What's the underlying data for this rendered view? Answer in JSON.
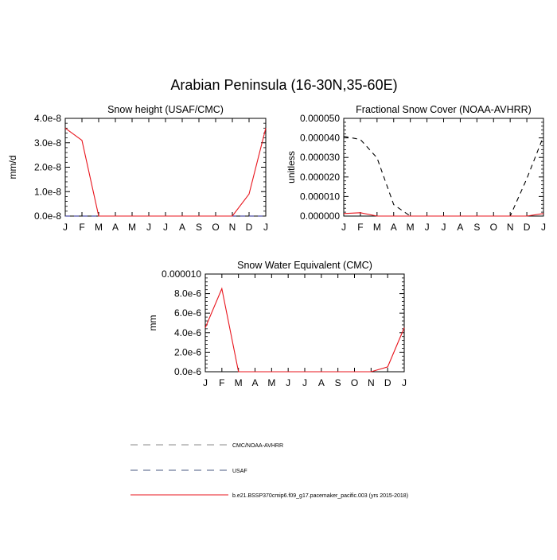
{
  "figure_title": "Arabian Peninsula (16-30N,35-60E)",
  "months": [
    "J",
    "F",
    "M",
    "A",
    "M",
    "J",
    "J",
    "A",
    "S",
    "O",
    "N",
    "D",
    "J"
  ],
  "colors": {
    "model": "#e8141c",
    "cmc_noaa": "#000000",
    "usaf": "#1f1f8f",
    "legend_cmc": "#8a8a8a",
    "legend_usaf": "#4a5a80"
  },
  "chart_data": [
    {
      "type": "line",
      "title": "Snow height (USAF/CMC)",
      "xlabel": "",
      "ylabel": "mm/d",
      "ylim": [
        0,
        4e-08
      ],
      "yticks": [
        0,
        1e-08,
        2e-08,
        3e-08,
        4e-08
      ],
      "ytick_labels": [
        "0.0e-8",
        "1.0e-8",
        "2.0e-8",
        "3.0e-8",
        "4.0e-8"
      ],
      "x": [
        "J",
        "F",
        "M",
        "A",
        "M",
        "J",
        "J",
        "A",
        "S",
        "O",
        "N",
        "D",
        "J"
      ],
      "series": [
        {
          "name": "CMC/NOAA-AVHRR",
          "style": "dashed-black",
          "values": [
            0,
            0,
            0,
            0,
            0,
            0,
            0,
            0,
            0,
            0,
            0,
            0,
            0
          ]
        },
        {
          "name": "USAF",
          "style": "dashed-blue",
          "values": [
            0,
            0,
            0,
            0,
            0,
            0,
            0,
            0,
            0,
            0,
            0,
            0,
            0
          ]
        },
        {
          "name": "b.e21.BSSP370cmip6.f09_g17.pacemaker_pacific.003 (yrs 2015-2018)",
          "style": "solid-red",
          "values": [
            3.6e-08,
            3.1e-08,
            0,
            0,
            0,
            0,
            0,
            0,
            0,
            0,
            0,
            9e-09,
            3.6e-08
          ]
        }
      ]
    },
    {
      "type": "line",
      "title": "Fractional Snow Cover (NOAA-AVHRR)",
      "xlabel": "",
      "ylabel": "unitless",
      "ylim": [
        0,
        5e-05
      ],
      "yticks": [
        0,
        1e-05,
        2e-05,
        3e-05,
        4e-05,
        5e-05
      ],
      "ytick_labels": [
        "0.000000",
        "0.000010",
        "0.000020",
        "0.000030",
        "0.000040",
        "0.000050"
      ],
      "x": [
        "J",
        "F",
        "M",
        "A",
        "M",
        "J",
        "J",
        "A",
        "S",
        "O",
        "N",
        "D",
        "J"
      ],
      "series": [
        {
          "name": "CMC/NOAA-AVHRR",
          "style": "dashed-black",
          "values": [
            4.08e-05,
            3.92e-05,
            2.98e-05,
            5.8e-06,
            0,
            0,
            0,
            0,
            0,
            0,
            0,
            1.92e-05,
            4.08e-05
          ]
        },
        {
          "name": "b.e21.BSSP370cmip6.f09_g17.pacemaker_pacific.003 (yrs 2015-2018)",
          "style": "solid-red",
          "values": [
            1.3e-06,
            1.7e-06,
            0,
            0,
            0,
            0,
            0,
            0,
            0,
            0,
            0,
            0,
            1.3e-06
          ]
        }
      ]
    },
    {
      "type": "line",
      "title": "Snow Water Equivalent (CMC)",
      "xlabel": "",
      "ylabel": "mm",
      "ylim": [
        0,
        1e-05
      ],
      "yticks": [
        0,
        2e-06,
        4e-06,
        6e-06,
        8e-06,
        1e-05
      ],
      "ytick_labels": [
        "0.0e-6",
        "2.0e-6",
        "4.0e-6",
        "6.0e-6",
        "8.0e-6",
        "0.000010"
      ],
      "x": [
        "J",
        "F",
        "M",
        "A",
        "M",
        "J",
        "J",
        "A",
        "S",
        "O",
        "N",
        "D",
        "J"
      ],
      "series": [
        {
          "name": "CMC/NOAA-AVHRR",
          "style": "dashed-black",
          "values": [
            0,
            0,
            0,
            0,
            0,
            0,
            0,
            0,
            0,
            0,
            0,
            0,
            0
          ]
        },
        {
          "name": "b.e21.BSSP370cmip6.f09_g17.pacemaker_pacific.003 (yrs 2015-2018)",
          "style": "solid-red",
          "values": [
            4.5e-06,
            8.5e-06,
            0,
            0,
            0,
            0,
            0,
            0,
            0,
            0,
            0,
            5e-07,
            4.5e-06
          ]
        }
      ]
    }
  ],
  "legend": [
    {
      "label": "CMC/NOAA-AVHRR",
      "style": "dashed-gray"
    },
    {
      "label": "USAF",
      "style": "dashed-blue"
    },
    {
      "label": "b.e21.BSSP370cmip6.f09_g17.pacemaker_pacific.003 (yrs 2015-2018)",
      "style": "solid-red"
    }
  ]
}
